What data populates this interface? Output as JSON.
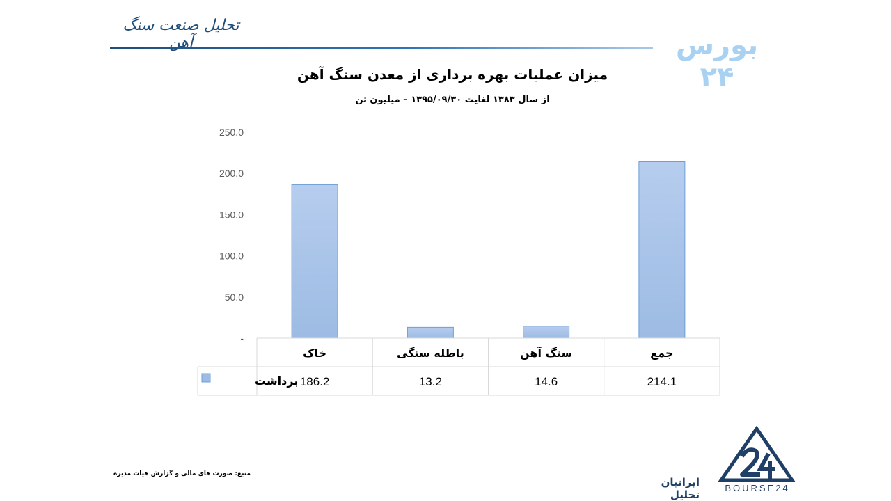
{
  "header": {
    "title": "تحلیل صنعت سنگ آهن",
    "brand": "بورس ۲۴"
  },
  "colors": {
    "bar": "#9dbbe3",
    "bar_edge": "#6f9fd8",
    "header_accent": "#1f4e79",
    "brand_light": "#a9d1f2",
    "logo": "#1f3f66"
  },
  "chart_data": {
    "type": "bar",
    "title": "میزان عملیات بهره برداری از معدن سنگ آهن",
    "subtitle": "از سال ۱۳۸۳ لغایت ۱۳۹۵/۰۹/۳۰ – میلیون تن",
    "categories": [
      "خاک",
      "باطله سنگی",
      "سنگ آهن",
      "جمع"
    ],
    "series": [
      {
        "name": "برداشت",
        "values": [
          186.2,
          13.2,
          14.6,
          214.1
        ]
      }
    ],
    "value_labels": [
      "186.2",
      "13.2",
      "14.6",
      "214.1"
    ],
    "y_ticks": [
      "-",
      "50.0",
      "100.0",
      "150.0",
      "200.0",
      "250.0"
    ],
    "ylim": [
      0,
      250
    ],
    "grid": false,
    "legend": "data-table"
  },
  "footer": {
    "source": "منبع: صورت های مالی و گزارش هیات مدیره",
    "company": "ایرانیان تحلیل",
    "logo_text": "BOURSE24"
  }
}
